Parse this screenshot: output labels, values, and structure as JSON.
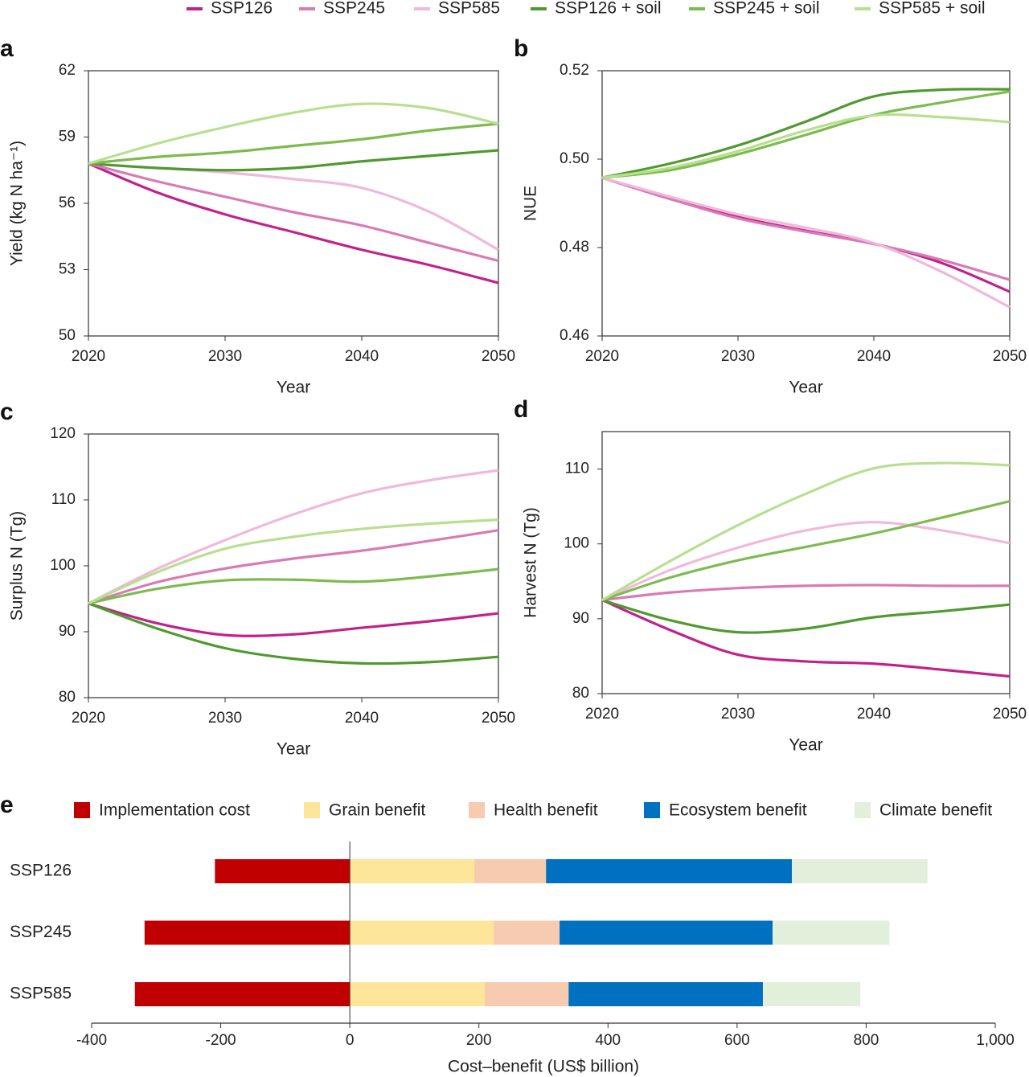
{
  "chart_data": [
    {
      "type": "line",
      "label": "a",
      "y_label": "Yield (kg N ha⁻¹)",
      "x_label": "Year",
      "x": [
        2020,
        2025,
        2030,
        2035,
        2040,
        2045,
        2050
      ],
      "xlim": [
        2020,
        2050
      ],
      "xticks": [
        2020,
        2030,
        2040,
        2050
      ],
      "ylim": [
        50,
        62
      ],
      "yticks": [
        50,
        53,
        56,
        59,
        62
      ],
      "series": [
        {
          "name": "SSP126",
          "color": "#c2218b",
          "values": [
            57.8,
            56.5,
            55.5,
            54.7,
            53.9,
            53.2,
            52.4
          ]
        },
        {
          "name": "SSP245",
          "color": "#d97ab5",
          "values": [
            57.8,
            57.0,
            56.3,
            55.6,
            55.0,
            54.2,
            53.4
          ]
        },
        {
          "name": "SSP585",
          "color": "#f0b9db",
          "values": [
            57.8,
            57.6,
            57.4,
            57.1,
            56.7,
            55.6,
            53.9
          ]
        },
        {
          "name": "SSP126 + soil",
          "color": "#4f9a2f",
          "values": [
            57.8,
            57.6,
            57.5,
            57.6,
            57.9,
            58.15,
            58.4
          ]
        },
        {
          "name": "SSP245 + soil",
          "color": "#7dbb4f",
          "values": [
            57.8,
            58.1,
            58.3,
            58.6,
            58.9,
            59.3,
            59.6
          ]
        },
        {
          "name": "SSP585 + soil",
          "color": "#b8df8f",
          "values": [
            57.8,
            58.7,
            59.45,
            60.1,
            60.5,
            60.3,
            59.6
          ]
        }
      ]
    },
    {
      "type": "line",
      "label": "b",
      "y_label": "NUE",
      "x_label": "Year",
      "x": [
        2020,
        2025,
        2030,
        2035,
        2040,
        2045,
        2050
      ],
      "xlim": [
        2020,
        2050
      ],
      "xticks": [
        2020,
        2030,
        2040,
        2050
      ],
      "ylim": [
        0.46,
        0.52
      ],
      "yticks": [
        0.46,
        0.48,
        {
          "value": 0.5,
          "label": "0.50"
        },
        0.52
      ],
      "series": [
        {
          "color": "#c2218b",
          "values": [
            0.4958,
            0.491,
            0.4869,
            0.4838,
            0.4809,
            0.4765,
            0.47
          ]
        },
        {
          "color": "#d97ab5",
          "values": [
            0.4958,
            0.491,
            0.4866,
            0.4836,
            0.4808,
            0.4772,
            0.4727
          ]
        },
        {
          "color": "#f0b9db",
          "values": [
            0.4958,
            0.4915,
            0.4875,
            0.4845,
            0.481,
            0.4745,
            0.4665
          ]
        },
        {
          "color": "#4f9a2f",
          "values": [
            0.4958,
            0.499,
            0.5031,
            0.5085,
            0.5142,
            0.5157,
            0.5158
          ]
        },
        {
          "color": "#7dbb4f",
          "values": [
            0.4958,
            0.4975,
            0.5011,
            0.5055,
            0.51,
            0.5128,
            0.5153
          ]
        },
        {
          "color": "#b8df8f",
          "values": [
            0.4958,
            0.498,
            0.5018,
            0.5065,
            0.5099,
            0.5095,
            0.5084
          ]
        }
      ]
    },
    {
      "type": "line",
      "label": "c",
      "y_label": "Surplus N (Tg)",
      "x_label": "Year",
      "x": [
        2020,
        2025,
        2030,
        2035,
        2040,
        2045,
        2050
      ],
      "xlim": [
        2020,
        2050
      ],
      "xticks": [
        2020,
        2030,
        2040,
        2050
      ],
      "ylim": [
        80,
        120
      ],
      "yticks": [
        80,
        90,
        100,
        110,
        120
      ],
      "series": [
        {
          "color": "#c2218b",
          "values": [
            94.3,
            91.3,
            89.5,
            89.6,
            90.6,
            91.6,
            92.8
          ]
        },
        {
          "color": "#d97ab5",
          "values": [
            94.3,
            97.5,
            99.6,
            101.1,
            102.3,
            103.8,
            105.4
          ]
        },
        {
          "color": "#f0b9db",
          "values": [
            94.3,
            99.5,
            103.9,
            107.8,
            111,
            113,
            114.5
          ]
        },
        {
          "color": "#4f9a2f",
          "values": [
            94.3,
            90.5,
            87.5,
            85.9,
            85.2,
            85.4,
            86.2
          ]
        },
        {
          "color": "#7dbb4f",
          "values": [
            94.3,
            96.5,
            97.8,
            97.9,
            97.6,
            98.4,
            99.5
          ]
        },
        {
          "color": "#b8df8f",
          "values": [
            94.3,
            99.0,
            102.6,
            104.4,
            105.6,
            106.4,
            107
          ]
        }
      ]
    },
    {
      "type": "line",
      "label": "d",
      "y_label": "Harvest N (Tg)",
      "x_label": "Year",
      "x": [
        2020,
        2025,
        2030,
        2035,
        2040,
        2045,
        2050
      ],
      "xlim": [
        2020,
        2050
      ],
      "xticks": [
        2020,
        2030,
        2040,
        2050
      ],
      "ylim": [
        80,
        115
      ],
      "yticks": [
        80,
        90,
        100,
        110
      ],
      "series": [
        {
          "color": "#c2218b",
          "values": [
            92.5,
            88.5,
            85.2,
            84.3,
            84.0,
            83.2,
            82.3
          ]
        },
        {
          "color": "#d97ab5",
          "values": [
            92.5,
            93.5,
            94.1,
            94.4,
            94.5,
            94.4,
            94.4
          ]
        },
        {
          "color": "#f0b9db",
          "values": [
            92.5,
            96.5,
            99.5,
            101.8,
            102.9,
            101.8,
            100.1
          ]
        },
        {
          "color": "#4f9a2f",
          "values": [
            92.5,
            89.8,
            88.2,
            88.7,
            90.2,
            91.0,
            91.9
          ]
        },
        {
          "color": "#7dbb4f",
          "values": [
            92.5,
            95.5,
            97.8,
            99.6,
            101.4,
            103.5,
            105.7
          ]
        },
        {
          "color": "#b8df8f",
          "values": [
            92.5,
            97.7,
            102.5,
            106.7,
            110.1,
            110.8,
            110.5
          ]
        }
      ]
    },
    {
      "type": "stacked-hbar",
      "label": "e",
      "x_label": "Cost–benefit (US$ billion)",
      "categories": [
        "SSP126",
        "SSP245",
        "SSP585"
      ],
      "xlim": [
        -400,
        1000
      ],
      "xticks": [
        -400,
        -200,
        0,
        200,
        400,
        600,
        800,
        {
          "value": 1000,
          "label": "1,000"
        }
      ],
      "series": [
        {
          "name": "Implementation cost",
          "color": "#c00000",
          "values": [
            -209,
            -318,
            -333
          ]
        },
        {
          "name": "Grain benefit",
          "color": "#fde59a",
          "values": [
            193,
            223,
            209
          ]
        },
        {
          "name": "Health benefit",
          "color": "#f7cbb0",
          "values": [
            111,
            102,
            130
          ]
        },
        {
          "name": "Ecosystem benefit",
          "color": "#0070c0",
          "values": [
            381,
            330,
            301
          ]
        },
        {
          "name": "Climate benefit",
          "color": "#e2efda",
          "values": [
            210,
            181,
            151
          ]
        }
      ]
    }
  ]
}
